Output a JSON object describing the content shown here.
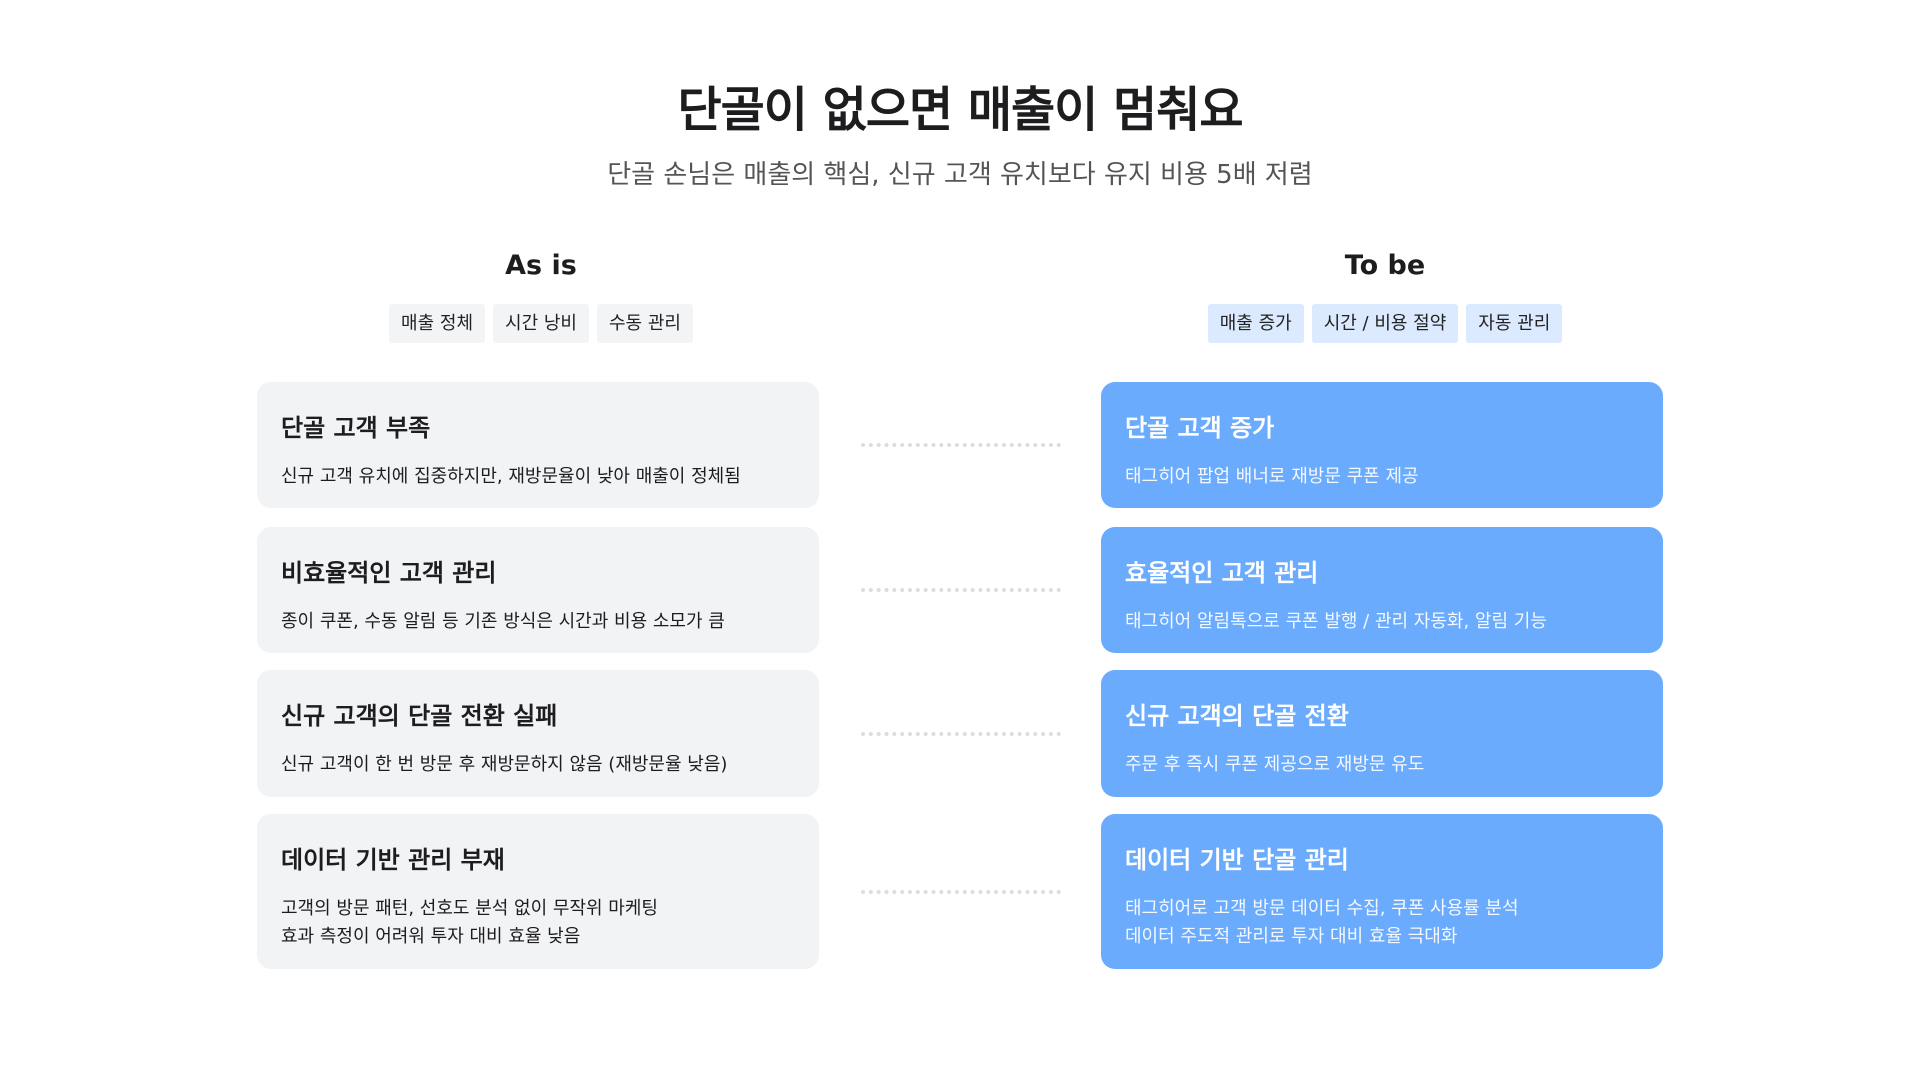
{
  "title": "단골이 없으면 매출이 멈춰요",
  "subtitle": "단골 손님은 매출의 핵심, 신규 고객 유치보다 유지 비용 5배 저렴",
  "as_is": {
    "heading": "As is",
    "tags": [
      "매출 정체",
      "시간 낭비",
      "수동 관리"
    ],
    "cards": [
      {
        "title": "단골 고객 부족",
        "lines": [
          "신규 고객 유치에 집중하지만, 재방문율이 낮아 매출이 정체됨"
        ]
      },
      {
        "title": "비효율적인 고객 관리",
        "lines": [
          "종이 쿠폰, 수동 알림 등 기존 방식은 시간과 비용 소모가 큼"
        ]
      },
      {
        "title": "신규 고객의 단골 전환 실패",
        "lines": [
          "신규 고객이 한 번 방문 후 재방문하지 않음 (재방문율 낮음)"
        ]
      },
      {
        "title": "데이터 기반 관리 부재",
        "lines": [
          "고객의 방문 패턴, 선호도 분석 없이 무작위 마케팅",
          "효과 측정이 어려워 투자 대비 효율 낮음"
        ]
      }
    ]
  },
  "to_be": {
    "heading": "To be",
    "tags": [
      "매출 증가",
      "시간 / 비용 절약",
      "자동 관리"
    ],
    "cards": [
      {
        "title": "단골 고객 증가",
        "lines": [
          "태그히어 팝업 배너로 재방문 쿠폰 제공"
        ]
      },
      {
        "title": "효율적인 고객 관리",
        "lines": [
          "태그히어 알림톡으로 쿠폰 발행 / 관리 자동화, 알림 기능"
        ]
      },
      {
        "title": "신규 고객의 단골 전환",
        "lines": [
          "주문 후 즉시 쿠폰 제공으로 재방문 유도"
        ]
      },
      {
        "title": "데이터 기반 단골 관리",
        "lines": [
          "태그히어로 고객 방문 데이터 수집, 쿠폰 사용률 분석",
          "데이터 주도적 관리로 투자 대비 효율 극대화"
        ]
      }
    ]
  },
  "colors": {
    "as_is_card": "#f2f3f5",
    "to_be_card": "#6aabfd",
    "to_be_tag": "#dbeafe"
  }
}
